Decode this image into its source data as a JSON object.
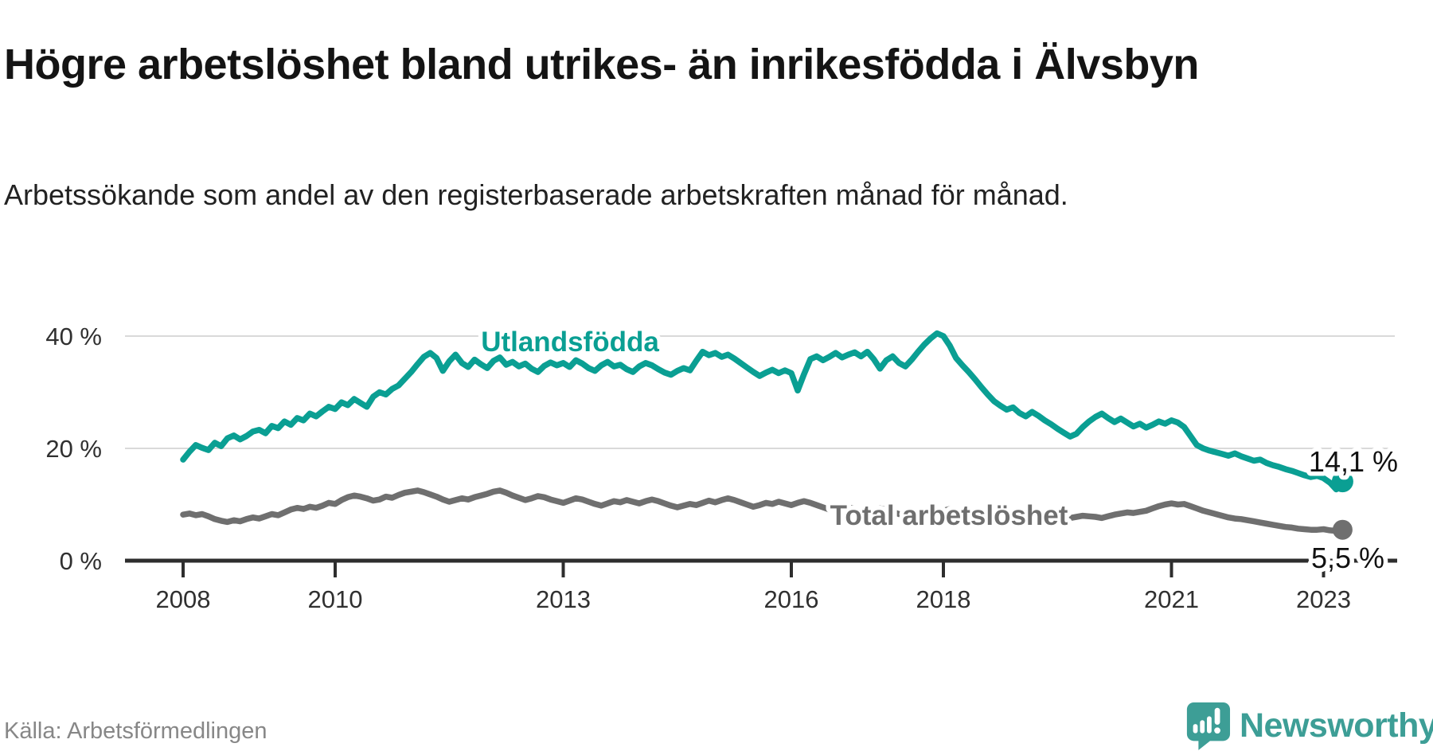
{
  "footer": {
    "source": "Källa: Arbetsförmedlingen",
    "brand": "Newsworthy"
  },
  "colors": {
    "series_foreign": "#0a9f93",
    "series_total": "#6f6f6f",
    "grid": "#d9d9d9",
    "axis": "#2e2e2e",
    "end_label": "#111111",
    "logo": "#3d9e96"
  },
  "chart_data": {
    "type": "line",
    "title": "Högre arbetslöshet bland utrikes- än inrikesfödda i Älvsbyn",
    "subtitle": "Arbetssökande som andel av den registerbaserade arbetskraften månad för månad.",
    "x_start_year": 2008,
    "x_step_months": 1,
    "grid": "horizontal-only",
    "legend_position": "inline-labels",
    "x_axis": {
      "ticks": [
        2008,
        2010,
        2013,
        2016,
        2018,
        2021,
        2023
      ]
    },
    "y_axis": {
      "range": [
        0,
        43
      ],
      "ticks": [
        {
          "value": 0,
          "label": "0 %"
        },
        {
          "value": 20,
          "label": "20 %"
        },
        {
          "value": 40,
          "label": "40 %"
        }
      ]
    },
    "series": [
      {
        "name": "Utlandsfödda",
        "end_label": "14,1 %",
        "end_value": 14.1,
        "color_key": "series_foreign",
        "values": [
          18.0,
          19.4,
          20.6,
          20.1,
          19.7,
          21.0,
          20.4,
          21.8,
          22.3,
          21.6,
          22.2,
          23.0,
          23.3,
          22.7,
          24.0,
          23.6,
          24.8,
          24.2,
          25.4,
          25.0,
          26.2,
          25.7,
          26.6,
          27.4,
          27.0,
          28.2,
          27.7,
          28.8,
          28.1,
          27.4,
          29.2,
          30.0,
          29.6,
          30.6,
          31.2,
          32.4,
          33.6,
          35.0,
          36.3,
          37.0,
          36.1,
          33.8,
          35.5,
          36.7,
          35.2,
          34.5,
          35.8,
          35.0,
          34.3,
          35.6,
          36.2,
          34.9,
          35.4,
          34.6,
          35.1,
          34.2,
          33.6,
          34.7,
          35.3,
          34.8,
          35.2,
          34.5,
          35.7,
          35.1,
          34.3,
          33.8,
          34.8,
          35.4,
          34.6,
          34.9,
          34.1,
          33.6,
          34.6,
          35.2,
          34.8,
          34.1,
          33.5,
          33.1,
          33.8,
          34.3,
          33.9,
          35.6,
          37.2,
          36.6,
          37.0,
          36.3,
          36.7,
          36.0,
          35.2,
          34.4,
          33.6,
          32.9,
          33.5,
          34.0,
          33.4,
          33.9,
          33.4,
          30.3,
          33.2,
          35.9,
          36.4,
          35.7,
          36.3,
          37.0,
          36.2,
          36.7,
          37.1,
          36.4,
          37.2,
          35.9,
          34.2,
          35.7,
          36.4,
          35.2,
          34.6,
          35.8,
          37.2,
          38.5,
          39.6,
          40.5,
          40.0,
          38.3,
          36.1,
          34.8,
          33.6,
          32.3,
          30.9,
          29.6,
          28.4,
          27.6,
          26.9,
          27.3,
          26.3,
          25.7,
          26.5,
          25.8,
          25.0,
          24.3,
          23.5,
          22.8,
          22.1,
          22.6,
          23.8,
          24.8,
          25.6,
          26.2,
          25.4,
          24.7,
          25.3,
          24.6,
          23.9,
          24.4,
          23.7,
          24.2,
          24.8,
          24.4,
          25.0,
          24.6,
          23.8,
          22.2,
          20.6,
          20.0,
          19.6,
          19.3,
          19.0,
          18.7,
          19.1,
          18.6,
          18.2,
          17.8,
          18.0,
          17.4,
          17.0,
          16.7,
          16.3,
          16.0,
          15.6,
          15.2,
          14.9,
          15.1,
          14.7,
          13.9,
          12.7,
          14.1
        ]
      },
      {
        "name": "Total arbetslöshet",
        "end_label": "5,5 %",
        "end_value": 5.5,
        "color_key": "series_total",
        "values": [
          8.2,
          8.4,
          8.1,
          8.3,
          7.9,
          7.4,
          7.1,
          6.9,
          7.2,
          7.0,
          7.4,
          7.7,
          7.5,
          7.9,
          8.3,
          8.1,
          8.6,
          9.1,
          9.4,
          9.2,
          9.6,
          9.4,
          9.8,
          10.3,
          10.1,
          10.8,
          11.3,
          11.6,
          11.4,
          11.1,
          10.7,
          10.9,
          11.4,
          11.2,
          11.7,
          12.1,
          12.3,
          12.5,
          12.2,
          11.8,
          11.4,
          10.9,
          10.5,
          10.8,
          11.1,
          10.9,
          11.3,
          11.6,
          11.9,
          12.3,
          12.5,
          12.1,
          11.6,
          11.2,
          10.8,
          11.1,
          11.5,
          11.3,
          10.9,
          10.6,
          10.3,
          10.7,
          11.1,
          10.9,
          10.5,
          10.1,
          9.8,
          10.2,
          10.6,
          10.4,
          10.8,
          10.5,
          10.2,
          10.6,
          10.9,
          10.6,
          10.2,
          9.8,
          9.5,
          9.8,
          10.1,
          9.9,
          10.3,
          10.7,
          10.4,
          10.8,
          11.1,
          10.8,
          10.4,
          10.0,
          9.6,
          9.9,
          10.3,
          10.1,
          10.5,
          10.2,
          9.9,
          10.3,
          10.6,
          10.3,
          9.9,
          9.5,
          9.1,
          9.4,
          9.7,
          9.5,
          9.2,
          8.9,
          8.6,
          9.0,
          9.3,
          9.1,
          8.7,
          8.3,
          8.0,
          8.3,
          8.6,
          8.4,
          8.8,
          9.1,
          8.9,
          9.2,
          8.8,
          8.5,
          8.1,
          7.8,
          7.5,
          7.8,
          8.1,
          7.9,
          8.2,
          8.5,
          8.3,
          8.6,
          8.9,
          8.6,
          8.3,
          8.0,
          7.9,
          7.7,
          7.6,
          7.8,
          8.0,
          7.9,
          7.8,
          7.6,
          7.9,
          8.2,
          8.4,
          8.6,
          8.5,
          8.7,
          8.9,
          9.3,
          9.7,
          10.0,
          10.2,
          10.0,
          10.1,
          9.7,
          9.3,
          8.9,
          8.6,
          8.3,
          8.0,
          7.7,
          7.5,
          7.4,
          7.2,
          7.0,
          6.8,
          6.6,
          6.4,
          6.2,
          6.0,
          5.9,
          5.7,
          5.6,
          5.5,
          5.5,
          5.6,
          5.4,
          5.3,
          5.5
        ]
      }
    ]
  }
}
